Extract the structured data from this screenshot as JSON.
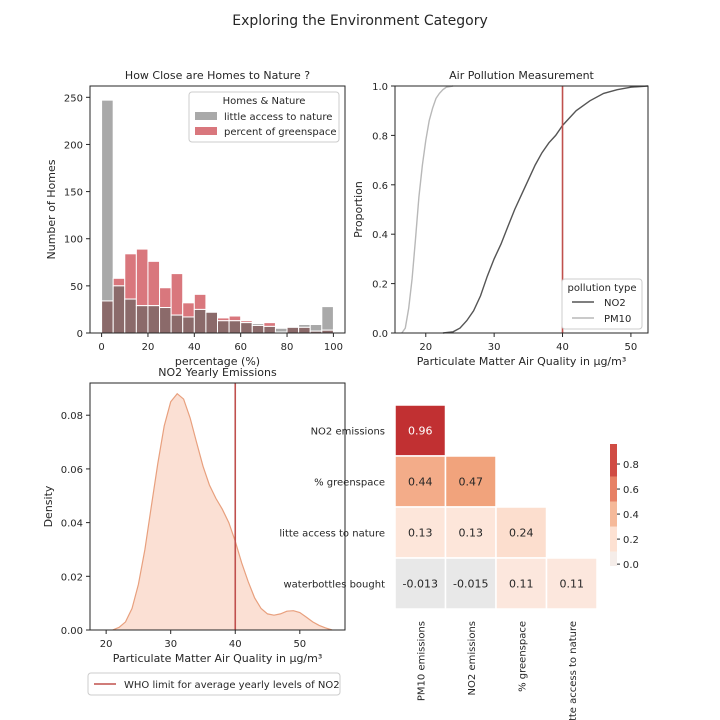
{
  "suptitle": "Exploring the Environment Category",
  "colors": {
    "gray_bar": "#a9a9a9",
    "red_bar": "#d9777d",
    "overlap": "#8b6a6a",
    "who_line": "#c0504d",
    "no2_line": "#555555",
    "pm10_line": "#b8b8b8",
    "kde_fill": "#fbe0d4",
    "kde_line": "#e8a07e"
  },
  "chart_data": [
    {
      "id": "hist",
      "type": "bar",
      "title": "How Close are Homes to Nature ?",
      "xlabel": "percentage (%)",
      "ylabel": "Number of Homes",
      "xlim": [
        -5,
        105
      ],
      "ylim": [
        0,
        262
      ],
      "xticks": [
        0,
        20,
        40,
        60,
        80,
        100
      ],
      "yticks": [
        0,
        50,
        100,
        150,
        200,
        250
      ],
      "bin_edges": [
        0,
        5,
        10,
        15,
        20,
        25,
        30,
        35,
        40,
        45,
        50,
        55,
        60,
        65,
        70,
        75,
        80,
        85,
        90,
        95,
        100
      ],
      "legend": {
        "title": "Homes & Nature",
        "placement": "upper right"
      },
      "series": [
        {
          "name": "little access to nature",
          "color": "gray",
          "values": [
            247,
            50,
            36,
            29,
            29,
            27,
            19,
            17,
            25,
            22,
            13,
            13,
            11,
            10,
            7,
            5,
            7,
            9,
            9,
            28
          ]
        },
        {
          "name": "percent of greenspace",
          "color": "red",
          "values": [
            34,
            58,
            84,
            89,
            76,
            48,
            63,
            32,
            41,
            23,
            16,
            18,
            13,
            8,
            11,
            1,
            6,
            6,
            2,
            3
          ]
        }
      ]
    },
    {
      "id": "ecdf",
      "type": "line",
      "title": "Air Pollution Measurement",
      "xlabel": "Particulate Matter Air Quality in µg/m³",
      "ylabel": "Proportion",
      "xlim": [
        15.5,
        52.5
      ],
      "ylim": [
        0,
        1
      ],
      "xticks": [
        20,
        30,
        40,
        50
      ],
      "yticks": [
        0,
        0.2,
        0.4,
        0.6,
        0.8,
        1
      ],
      "ytick_labels": [
        "0.0",
        "0.2",
        "0.4",
        "0.6",
        "0.8",
        "1.0"
      ],
      "vline": 40,
      "legend": {
        "title": "pollution type",
        "placement": "lower right"
      },
      "series": [
        {
          "name": "NO2",
          "x": [
            22.5,
            24,
            25,
            26,
            27,
            28,
            29,
            30,
            31,
            32,
            33,
            34,
            35,
            36,
            37,
            38,
            39,
            40,
            42,
            44,
            46,
            48,
            50,
            52.5
          ],
          "y": [
            0,
            0.005,
            0.02,
            0.05,
            0.09,
            0.15,
            0.23,
            0.3,
            0.36,
            0.43,
            0.5,
            0.56,
            0.62,
            0.68,
            0.73,
            0.77,
            0.8,
            0.84,
            0.9,
            0.94,
            0.97,
            0.985,
            0.995,
            1.0
          ]
        },
        {
          "name": "PM10",
          "x": [
            16.5,
            17,
            17.5,
            18,
            18.5,
            19,
            19.5,
            20,
            20.5,
            21,
            21.5,
            22,
            22.5,
            23,
            24
          ],
          "y": [
            0,
            0.02,
            0.1,
            0.22,
            0.38,
            0.55,
            0.68,
            0.78,
            0.86,
            0.91,
            0.95,
            0.97,
            0.985,
            0.995,
            1.0
          ]
        }
      ]
    },
    {
      "id": "kde",
      "type": "area",
      "title": "NO2 Yearly Emissions",
      "xlabel": "Particulate Matter Air Quality in µg/m³",
      "ylabel": "Density",
      "xlim": [
        17.5,
        57
      ],
      "ylim": [
        0,
        0.092
      ],
      "xticks": [
        20,
        30,
        40,
        50
      ],
      "yticks": [
        0,
        0.02,
        0.04,
        0.06,
        0.08
      ],
      "ytick_labels": [
        "0.00",
        "0.02",
        "0.04",
        "0.06",
        "0.08"
      ],
      "vline": 40,
      "legend": {
        "entries": [
          "WHO limit for average yearly levels of NO2"
        ],
        "placement": "below"
      },
      "x": [
        21,
        22,
        23,
        24,
        25,
        26,
        27,
        28,
        29,
        30,
        31,
        32,
        33,
        34,
        35,
        36,
        37,
        38,
        39,
        40,
        41,
        42,
        43,
        44,
        45,
        46,
        47,
        48,
        49,
        50,
        51,
        52,
        53,
        54,
        55
      ],
      "y": [
        0,
        0.001,
        0.003,
        0.008,
        0.017,
        0.03,
        0.046,
        0.062,
        0.076,
        0.085,
        0.088,
        0.086,
        0.079,
        0.07,
        0.061,
        0.054,
        0.049,
        0.045,
        0.04,
        0.033,
        0.025,
        0.018,
        0.012,
        0.008,
        0.006,
        0.0055,
        0.006,
        0.007,
        0.0072,
        0.0065,
        0.0048,
        0.003,
        0.0017,
        0.0008,
        0
      ]
    },
    {
      "id": "heatmap",
      "type": "heatmap",
      "rows": [
        "NO2 emissions",
        "% greenspace",
        "litte access to nature",
        "waterbottles bought"
      ],
      "cols": [
        "PM10 emissions",
        "NO2 emissions",
        "% greenspace",
        "litte access to nature"
      ],
      "values": [
        [
          0.96,
          null,
          null,
          null
        ],
        [
          0.44,
          0.47,
          null,
          null
        ],
        [
          0.13,
          0.13,
          0.24,
          null
        ],
        [
          -0.013,
          -0.015,
          0.11,
          0.11
        ]
      ],
      "labels": [
        [
          "0.96",
          "",
          "",
          ""
        ],
        [
          "0.44",
          "0.47",
          "",
          ""
        ],
        [
          "0.13",
          "0.13",
          "0.24",
          ""
        ],
        [
          "-0.013",
          "-0.015",
          "0.11",
          "0.11"
        ]
      ],
      "colorbar": {
        "ticks": [
          0,
          0.2,
          0.4,
          0.6,
          0.8
        ],
        "tick_labels": [
          "0.0",
          "0.2",
          "0.4",
          "0.6",
          "0.8"
        ],
        "range": [
          -0.015,
          0.96
        ]
      }
    }
  ]
}
